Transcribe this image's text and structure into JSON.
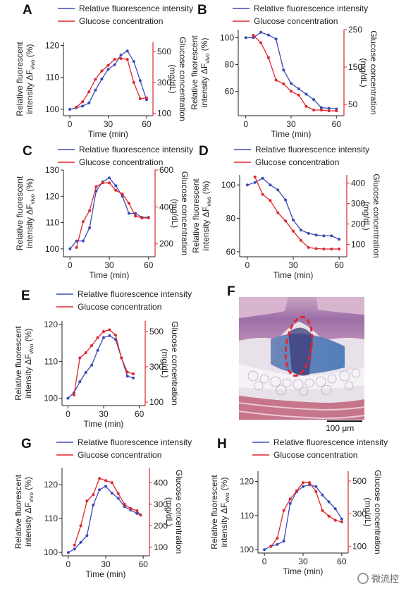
{
  "legend": {
    "fluor": "Relative fluorescence intensity",
    "glucose": "Glucose concentration"
  },
  "axis_text": {
    "ylabel_line1": "Relative fluorescent",
    "ylabel_line2a": "intensity ΔF",
    "ylabel_sub": "vivo",
    "ylabel_line2b": " (%)",
    "y2label_line1": "Glucose concentration",
    "y2label_line2": "(mg/dL)",
    "xlabel": "Time (min)"
  },
  "colors": {
    "fluor": "#3b4bb5",
    "glucose": "#e0262e"
  },
  "panel_f": {
    "letter": "F",
    "scale_label": "100 μm"
  },
  "watermark": "微流控",
  "chart_data": [
    {
      "letter": "A",
      "type": "line",
      "xlim": [
        -5,
        65
      ],
      "xticks": [
        0,
        30,
        60
      ],
      "ylim": [
        98,
        121
      ],
      "yticks": [
        100,
        110,
        120
      ],
      "y2lim": [
        85,
        560
      ],
      "y2ticks": [
        100,
        300,
        500
      ],
      "legend_position": "top",
      "series": [
        {
          "axis": "left",
          "color": "#3b4bb5",
          "x": [
            0,
            5,
            10,
            15,
            20,
            25,
            30,
            35,
            40,
            45,
            50,
            55,
            60
          ],
          "y": [
            100,
            100.5,
            101,
            102,
            106,
            109.5,
            112.5,
            114,
            117,
            118.3,
            115,
            109,
            103
          ]
        },
        {
          "axis": "right",
          "color": "#e0262e",
          "x": [
            5,
            10,
            15,
            20,
            25,
            30,
            35,
            40,
            45,
            50,
            55,
            60
          ],
          "y": [
            140,
            175,
            240,
            320,
            375,
            410,
            450,
            455,
            450,
            300,
            195,
            200
          ]
        }
      ]
    },
    {
      "letter": "B",
      "type": "line",
      "xlim": [
        -5,
        65
      ],
      "xticks": [
        0,
        30,
        60
      ],
      "ylim": [
        42,
        106
      ],
      "yticks": [
        60,
        80,
        100
      ],
      "y2lim": [
        20,
        250
      ],
      "y2ticks": [
        50,
        150,
        250
      ],
      "legend_position": "top",
      "series": [
        {
          "axis": "left",
          "color": "#3b4bb5",
          "x": [
            0,
            5,
            10,
            15,
            20,
            25,
            30,
            35,
            40,
            45,
            50,
            55,
            60
          ],
          "y": [
            100,
            100,
            104,
            102,
            99,
            76,
            66,
            62,
            58,
            54,
            48,
            47.5,
            47
          ]
        },
        {
          "axis": "right",
          "color": "#e0262e",
          "x": [
            5,
            10,
            15,
            20,
            25,
            30,
            35,
            40,
            45,
            50,
            55,
            60
          ],
          "y": [
            235,
            215,
            175,
            115,
            105,
            85,
            75,
            45,
            35,
            35,
            33,
            33
          ]
        }
      ]
    },
    {
      "letter": "C",
      "type": "line",
      "xlim": [
        -5,
        65
      ],
      "xticks": [
        0,
        30,
        60
      ],
      "ylim": [
        97,
        130
      ],
      "yticks": [
        100,
        110,
        120,
        130
      ],
      "y2lim": [
        130,
        600
      ],
      "y2ticks": [
        200,
        400,
        600
      ],
      "legend_position": "top",
      "series": [
        {
          "axis": "left",
          "color": "#3b4bb5",
          "x": [
            0,
            5,
            10,
            15,
            20,
            25,
            30,
            35,
            40,
            45,
            50,
            55,
            60
          ],
          "y": [
            100,
            103,
            103,
            108,
            122,
            125.5,
            127,
            124,
            120,
            113.5,
            113.5,
            112,
            112
          ]
        },
        {
          "axis": "right",
          "color": "#e0262e",
          "x": [
            5,
            10,
            15,
            20,
            25,
            30,
            35,
            40,
            45,
            50,
            55,
            60
          ],
          "y": [
            180,
            320,
            380,
            510,
            530,
            530,
            490,
            470,
            420,
            350,
            340,
            340
          ]
        }
      ]
    },
    {
      "letter": "D",
      "type": "line",
      "xlim": [
        -5,
        65
      ],
      "xticks": [
        0,
        30,
        60
      ],
      "ylim": [
        57,
        106
      ],
      "yticks": [
        60,
        80,
        100
      ],
      "y2lim": [
        40,
        440
      ],
      "y2ticks": [
        100,
        200,
        300,
        400
      ],
      "legend_position": "top",
      "series": [
        {
          "axis": "left",
          "color": "#3b4bb5",
          "x": [
            0,
            5,
            10,
            15,
            20,
            25,
            30,
            35,
            40,
            45,
            50,
            55,
            60
          ],
          "y": [
            100,
            101.5,
            104,
            100,
            97,
            91,
            79,
            73,
            71,
            70,
            69.5,
            69.5,
            67.5
          ]
        },
        {
          "axis": "right",
          "color": "#e0262e",
          "x": [
            5,
            10,
            15,
            20,
            25,
            30,
            35,
            40,
            45,
            50,
            55,
            60
          ],
          "y": [
            430,
            345,
            315,
            255,
            215,
            165,
            120,
            85,
            80,
            78,
            78,
            78
          ]
        }
      ]
    },
    {
      "letter": "E",
      "type": "line",
      "xlim": [
        -5,
        65
      ],
      "xticks": [
        0,
        30,
        60
      ],
      "ylim": [
        98,
        121
      ],
      "yticks": [
        100,
        110,
        120
      ],
      "y2lim": [
        80,
        560
      ],
      "y2ticks": [
        100,
        300,
        500
      ],
      "legend_position": "top",
      "series": [
        {
          "axis": "left",
          "color": "#3b4bb5",
          "x": [
            0,
            5,
            10,
            15,
            20,
            25,
            30,
            35,
            40,
            45,
            50,
            55
          ],
          "y": [
            100,
            101.5,
            104.5,
            107,
            109,
            113,
            116.5,
            117,
            116,
            111,
            106,
            105.5
          ]
        },
        {
          "axis": "right",
          "color": "#e0262e",
          "x": [
            5,
            10,
            15,
            20,
            25,
            30,
            35,
            40,
            45,
            50,
            55
          ],
          "y": [
            140,
            350,
            380,
            420,
            465,
            500,
            510,
            480,
            350,
            270,
            260
          ]
        }
      ]
    },
    {
      "letter": "G",
      "type": "line",
      "xlim": [
        -5,
        65
      ],
      "xticks": [
        0,
        30,
        60
      ],
      "ylim": [
        99,
        125
      ],
      "yticks": [
        100,
        110,
        120
      ],
      "y2lim": [
        60,
        470
      ],
      "y2ticks": [
        100,
        200,
        300,
        400
      ],
      "legend_position": "top",
      "series": [
        {
          "axis": "left",
          "color": "#3b4bb5",
          "x": [
            0,
            5,
            10,
            15,
            20,
            25,
            30,
            35,
            40,
            45,
            50,
            55,
            58
          ],
          "y": [
            100,
            101,
            103,
            105,
            114,
            118.5,
            119.5,
            117.5,
            116,
            113.5,
            112.5,
            111.5,
            111
          ]
        },
        {
          "axis": "right",
          "color": "#e0262e",
          "x": [
            5,
            10,
            15,
            20,
            25,
            30,
            35,
            40,
            45,
            50,
            55,
            58
          ],
          "y": [
            110,
            200,
            315,
            345,
            420,
            410,
            400,
            350,
            300,
            280,
            270,
            250
          ]
        }
      ]
    },
    {
      "letter": "H",
      "type": "line",
      "xlim": [
        -5,
        65
      ],
      "xticks": [
        0,
        30,
        60
      ],
      "ylim": [
        99,
        123
      ],
      "yticks": [
        100,
        110,
        120
      ],
      "y2lim": [
        60,
        560
      ],
      "y2ticks": [
        100,
        300,
        500
      ],
      "legend_position": "top",
      "series": [
        {
          "axis": "left",
          "color": "#3b4bb5",
          "x": [
            0,
            5,
            10,
            15,
            20,
            25,
            30,
            35,
            40,
            45,
            50,
            55,
            60
          ],
          "y": [
            100,
            101,
            101.5,
            102.5,
            113.5,
            117,
            118.5,
            119,
            118.5,
            116,
            114,
            112,
            109
          ]
        },
        {
          "axis": "right",
          "color": "#e0262e",
          "x": [
            5,
            10,
            15,
            20,
            25,
            30,
            35,
            40,
            45,
            50,
            55,
            60
          ],
          "y": [
            100,
            150,
            320,
            390,
            440,
            490,
            490,
            435,
            320,
            285,
            260,
            250
          ]
        }
      ]
    }
  ]
}
